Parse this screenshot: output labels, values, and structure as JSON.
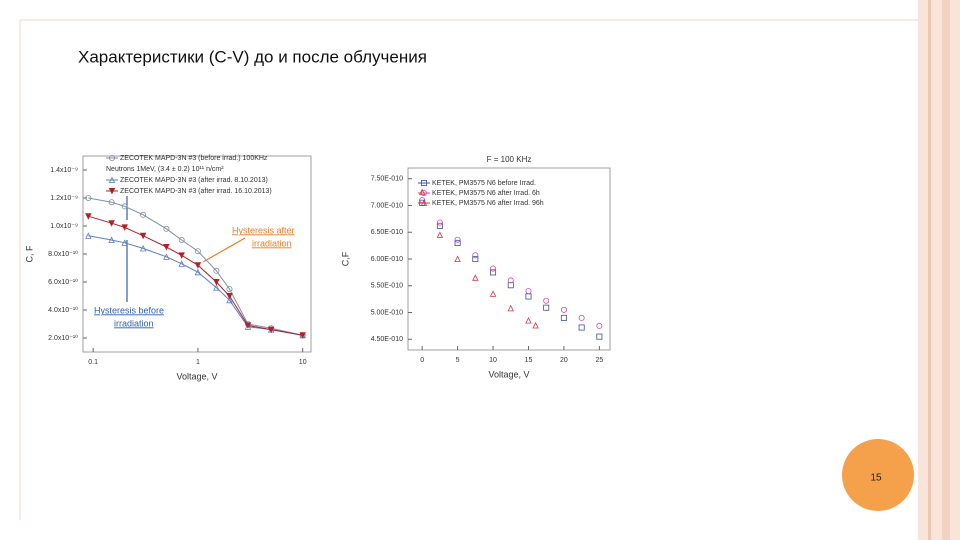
{
  "slide": {
    "title": "Характеристики (C-V) до и после облучения",
    "page_number": "15"
  },
  "chart_data": [
    {
      "type": "line",
      "log_x": true,
      "lines": true,
      "x_label": "Voltage, V",
      "y_label": "C, F",
      "legend_note": "Neutrons 1MeV, (3.4 ± 0.2) 10¹¹ n/cm²",
      "x": [
        0.09,
        0.15,
        0.2,
        0.3,
        0.5,
        0.7,
        1,
        1.5,
        2,
        3,
        5,
        10
      ],
      "series": [
        {
          "name": "ZECOTEK MAPD-3N #3 (before irrad.) 100KHz",
          "color": "#7f8fa8",
          "marker": "circle",
          "values": [
            1.2e-09,
            1.17e-09,
            1.14e-09,
            1.08e-09,
            9.8e-10,
            9e-10,
            8.2e-10,
            6.8e-10,
            5.5e-10,
            3e-10,
            2.7e-10,
            2.2e-10
          ]
        },
        {
          "name": "ZECOTEK MAPD-3N #3 (after irrad. 8.10.2013)",
          "color": "#5b7fc0",
          "marker": "triangle",
          "values": [
            9.3e-10,
            9e-10,
            8.8e-10,
            8.4e-10,
            7.8e-10,
            7.3e-10,
            6.7e-10,
            5.6e-10,
            4.7e-10,
            2.8e-10,
            2.6e-10,
            2.2e-10
          ]
        },
        {
          "name": "ZECOTEK MAPD-3N #3 (after irrad. 16.10.2013)",
          "color": "#b0222a",
          "marker": "triangle-filled",
          "values": [
            1.07e-09,
            1.02e-09,
            9.9e-10,
            9.3e-10,
            8.5e-10,
            7.9e-10,
            7.2e-10,
            6e-10,
            5e-10,
            2.9e-10,
            2.6e-10,
            2.2e-10
          ]
        }
      ],
      "annotations": [
        {
          "lines": [
            "Hysteresis after",
            "irradiation"
          ],
          "color": "#e67e22"
        },
        {
          "lines": [
            "Hysteresis before",
            "irradiation"
          ],
          "color": "#2f5fb0"
        }
      ],
      "xlim": [
        0.08,
        12
      ],
      "xticks": [
        0.1,
        1,
        10
      ],
      "ylim": [
        1e-10,
        1.5e-09
      ],
      "yticks": [
        {
          "value": 2e-10,
          "label": "2.0x10⁻¹⁰"
        },
        {
          "value": 4e-10,
          "label": "4.0x10⁻¹⁰"
        },
        {
          "value": 6e-10,
          "label": "6.0x10⁻¹⁰"
        },
        {
          "value": 8e-10,
          "label": "8.0x10⁻¹⁰"
        },
        {
          "value": 1e-09,
          "label": "1.0x10⁻⁹"
        },
        {
          "value": 1.2e-09,
          "label": "1.2x10⁻⁹"
        },
        {
          "value": 1.4e-09,
          "label": "1.4x10⁻⁹"
        }
      ]
    },
    {
      "type": "scatter",
      "log_x": false,
      "lines": false,
      "title": "F = 100 KHz",
      "x_label": "Voltage, V",
      "y_label": "C,F",
      "series": [
        {
          "name": "KETEK, PM3575 N6 before Irrad.",
          "color": "#3a4fa8",
          "marker": "square",
          "x": [
            0,
            2.5,
            5,
            7.5,
            10,
            12.5,
            15,
            17.5,
            20,
            22.5,
            25
          ],
          "values": [
            7.05e-10,
            6.62e-10,
            6.3e-10,
            6e-10,
            5.75e-10,
            5.51e-10,
            5.3e-10,
            5.09e-10,
            4.9e-10,
            4.72e-10,
            4.55e-10
          ]
        },
        {
          "name": "KETEK, PM3575 N6 after Irrad. 6h",
          "color": "#d04aa8",
          "marker": "circle",
          "x": [
            0,
            2.5,
            5,
            7.5,
            10,
            12.5,
            15,
            17.5,
            20,
            22.5,
            25
          ],
          "values": [
            7.1e-10,
            6.68e-10,
            6.36e-10,
            6.07e-10,
            5.82e-10,
            5.6e-10,
            5.4e-10,
            5.22e-10,
            5.05e-10,
            4.9e-10,
            4.75e-10
          ]
        },
        {
          "name": "KETEK, PM3575 N6 after Irrad. 96h",
          "color": "#d03a4a",
          "marker": "triangle",
          "x": [
            0,
            2.5,
            5,
            7.5,
            10,
            12.5,
            15,
            16
          ],
          "values": [
            7.25e-10,
            6.45e-10,
            6e-10,
            5.65e-10,
            5.35e-10,
            5.08e-10,
            4.85e-10,
            4.76e-10
          ]
        }
      ],
      "xlim": [
        -2,
        26.5
      ],
      "xticks": [
        0,
        5,
        10,
        15,
        20,
        25
      ],
      "ylim": [
        4.3e-10,
        7.7e-10
      ],
      "yticks": [
        {
          "value": 4.5e-10,
          "label": "4.50E-010"
        },
        {
          "value": 5e-10,
          "label": "5.00E-010"
        },
        {
          "value": 5.5e-10,
          "label": "5.50E-010"
        },
        {
          "value": 6e-10,
          "label": "6.00E-010"
        },
        {
          "value": 6.5e-10,
          "label": "6.50E-010"
        },
        {
          "value": 7e-10,
          "label": "7.00E-010"
        },
        {
          "value": 7.5e-10,
          "label": "7.50E-010"
        }
      ]
    }
  ]
}
